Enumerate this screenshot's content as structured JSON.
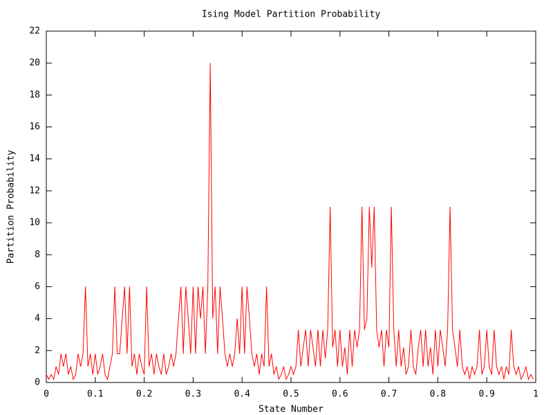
{
  "chart_data": {
    "type": "line",
    "title": "Ising Model Partition Probability",
    "x_label": "State Number",
    "y_label": "Partition Probability",
    "x": [
      0,
      0.005,
      0.01,
      0.015,
      0.02,
      0.025,
      0.03,
      0.035,
      0.04,
      0.045,
      0.05,
      0.055,
      0.06,
      0.065,
      0.07,
      0.075,
      0.08,
      0.085,
      0.09,
      0.095,
      0.1,
      0.105,
      0.11,
      0.115,
      0.12,
      0.125,
      0.13,
      0.135,
      0.14,
      0.145,
      0.15,
      0.155,
      0.16,
      0.165,
      0.17,
      0.175,
      0.18,
      0.185,
      0.19,
      0.195,
      0.2,
      0.205,
      0.21,
      0.215,
      0.22,
      0.225,
      0.23,
      0.235,
      0.24,
      0.245,
      0.25,
      0.255,
      0.26,
      0.265,
      0.27,
      0.275,
      0.28,
      0.285,
      0.29,
      0.295,
      0.3,
      0.305,
      0.31,
      0.315,
      0.32,
      0.325,
      0.33,
      0.335,
      0.34,
      0.345,
      0.35,
      0.355,
      0.36,
      0.365,
      0.37,
      0.375,
      0.38,
      0.385,
      0.39,
      0.395,
      0.4,
      0.405,
      0.41,
      0.415,
      0.42,
      0.425,
      0.43,
      0.435,
      0.44,
      0.445,
      0.45,
      0.455,
      0.46,
      0.465,
      0.47,
      0.475,
      0.48,
      0.485,
      0.49,
      0.495,
      0.5,
      0.505,
      0.51,
      0.515,
      0.52,
      0.525,
      0.53,
      0.535,
      0.54,
      0.545,
      0.55,
      0.555,
      0.56,
      0.565,
      0.57,
      0.575,
      0.58,
      0.585,
      0.59,
      0.595,
      0.6,
      0.605,
      0.61,
      0.615,
      0.62,
      0.625,
      0.63,
      0.635,
      0.64,
      0.645,
      0.65,
      0.655,
      0.66,
      0.665,
      0.67,
      0.675,
      0.68,
      0.685,
      0.69,
      0.695,
      0.7,
      0.705,
      0.71,
      0.715,
      0.72,
      0.725,
      0.73,
      0.735,
      0.74,
      0.745,
      0.75,
      0.755,
      0.76,
      0.765,
      0.77,
      0.775,
      0.78,
      0.785,
      0.79,
      0.795,
      0.8,
      0.805,
      0.81,
      0.815,
      0.82,
      0.825,
      0.83,
      0.835,
      0.84,
      0.845,
      0.85,
      0.855,
      0.86,
      0.865,
      0.87,
      0.875,
      0.88,
      0.885,
      0.89,
      0.895,
      0.9,
      0.905,
      0.91,
      0.915,
      0.92,
      0.925,
      0.93,
      0.935,
      0.94,
      0.945,
      0.95,
      0.955,
      0.96,
      0.965,
      0.97,
      0.975,
      0.98,
      0.985,
      0.99,
      0.995
    ],
    "series": [
      {
        "color": "#ff0000",
        "values": [
          0.5,
          0.2,
          0.5,
          0.2,
          1,
          0.5,
          1.8,
          1,
          1.8,
          0.5,
          1,
          0.2,
          0.5,
          1.8,
          1,
          1.8,
          6,
          1,
          1.8,
          0.5,
          1.8,
          0.5,
          1,
          1.8,
          0.5,
          0.2,
          1,
          1.8,
          6,
          1.8,
          1.8,
          4,
          6,
          1.8,
          6,
          1,
          1.8,
          0.5,
          1.8,
          1,
          0.5,
          6,
          1,
          1.8,
          0.5,
          1.8,
          1,
          0.5,
          1.8,
          0.5,
          1,
          1.8,
          1,
          1.8,
          4,
          6,
          1.8,
          6,
          4,
          1.8,
          6,
          1.8,
          6,
          4,
          6,
          1.8,
          6,
          20,
          4,
          6,
          1.8,
          6,
          4,
          1.8,
          1,
          1.8,
          1,
          1.8,
          4,
          1.8,
          6,
          1.8,
          6,
          4,
          1.8,
          1,
          1.8,
          0.5,
          1.8,
          1,
          6,
          1,
          1.8,
          0.5,
          1,
          0.2,
          0.5,
          1,
          0.2,
          0.5,
          1,
          0.5,
          1,
          3.3,
          1,
          2.2,
          3.3,
          1,
          3.3,
          2.2,
          1,
          3.3,
          1,
          3.3,
          1.5,
          3.3,
          11,
          2.2,
          3.3,
          1,
          3.3,
          1,
          2.2,
          0.5,
          3.3,
          1,
          3.3,
          2.2,
          3.3,
          11,
          3.3,
          4,
          11,
          7.2,
          11,
          3.3,
          2.2,
          3.3,
          1,
          3.3,
          2.2,
          11,
          3.3,
          1,
          3.3,
          1,
          2.2,
          0.5,
          1,
          3.3,
          1,
          0.5,
          2.2,
          3.3,
          1,
          3.3,
          1,
          2.2,
          0.5,
          3.3,
          1,
          3.3,
          2.2,
          1,
          3.3,
          11,
          3.3,
          2.2,
          1,
          3.3,
          1,
          0.5,
          1,
          0.2,
          1,
          0.5,
          1,
          3.3,
          0.5,
          1,
          3.3,
          1,
          0.5,
          3.3,
          1,
          0.5,
          1,
          0.2,
          1,
          0.5,
          3.3,
          1,
          0.5,
          1,
          0.2,
          0.5,
          1,
          0.2,
          0.5,
          0.2
        ]
      }
    ],
    "xlim": [
      0,
      1
    ],
    "xticks": [
      0,
      0.1,
      0.2,
      0.3,
      0.4,
      0.5,
      0.6,
      0.7,
      0.8,
      0.9,
      1
    ],
    "ylim": [
      0,
      22
    ],
    "yticks": [
      0,
      2,
      4,
      6,
      8,
      10,
      12,
      14,
      16,
      18,
      20,
      22
    ]
  }
}
